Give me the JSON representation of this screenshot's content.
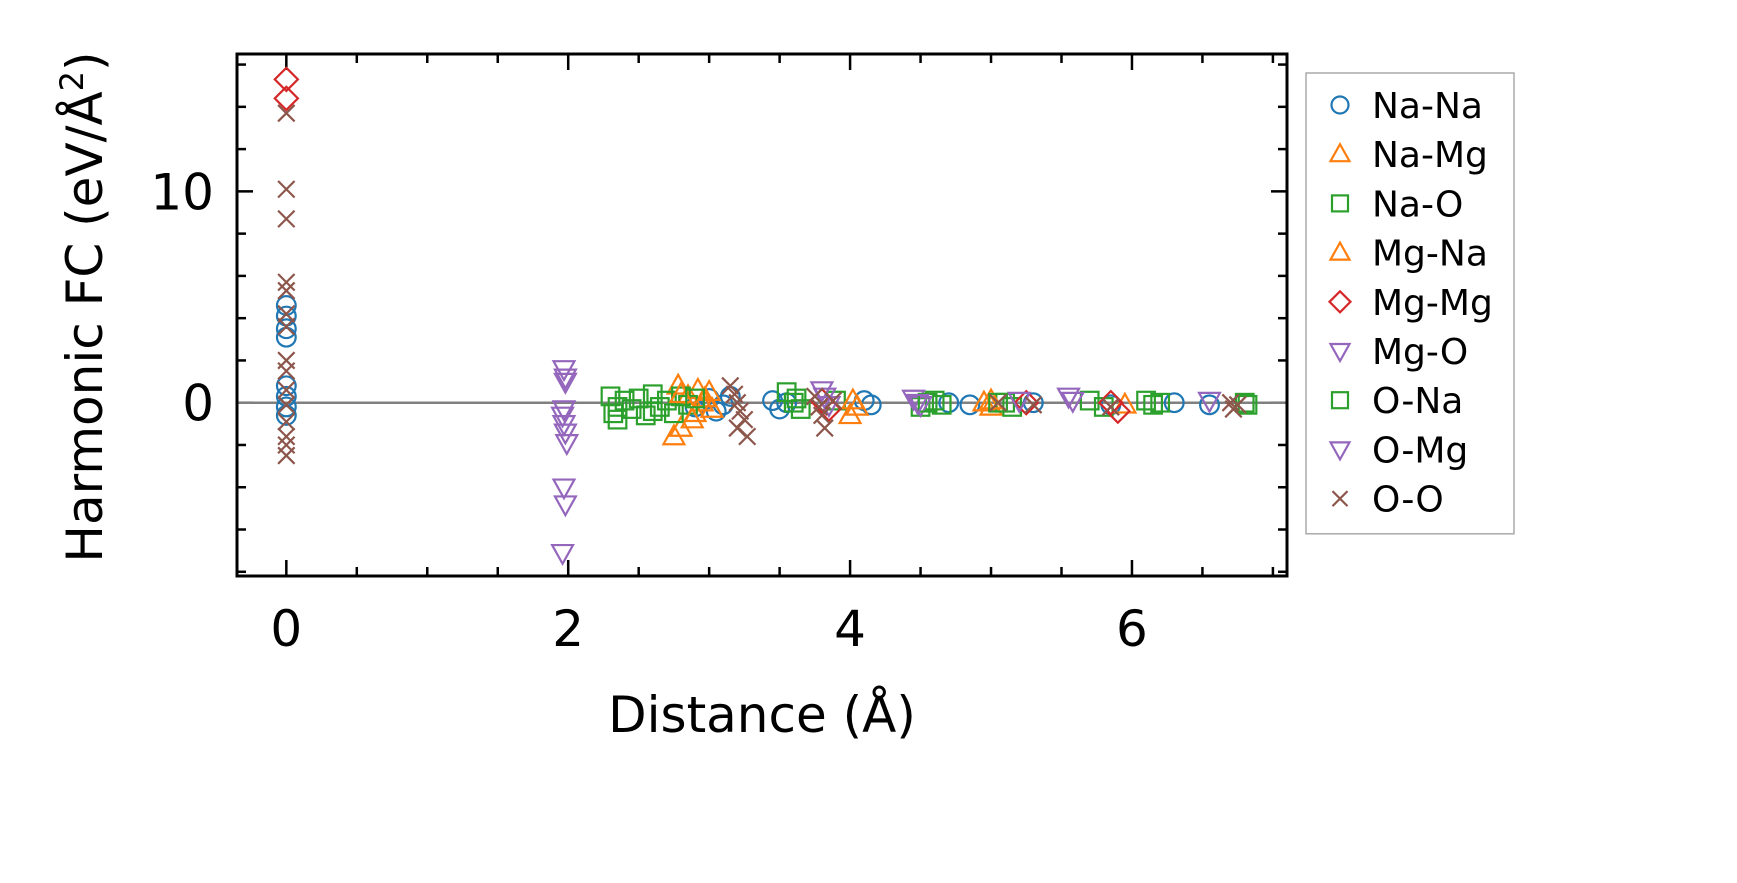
{
  "chart_data": {
    "type": "scatter",
    "xlabel": "Distance (Å)",
    "ylabel": "Harmonic FC (eV/Å",
    "ylabel_sup": "2",
    "ylabel_close": ")",
    "xlim": [
      -0.35,
      7.1
    ],
    "ylim": [
      -8.2,
      16.5
    ],
    "x_ticks": [
      0,
      2,
      4,
      6
    ],
    "x_minor_step": 0.5,
    "y_ticks": [
      0,
      10
    ],
    "y_minor_step": 2,
    "zero_line": true,
    "grid": false,
    "legend_position": "right, outside plot",
    "series": [
      {
        "name": "Na-Na",
        "marker": "circle",
        "color": "#1f77b4",
        "points": [
          [
            0,
            4.6
          ],
          [
            0,
            4.1
          ],
          [
            0,
            3.5
          ],
          [
            0,
            3.1
          ],
          [
            0,
            0.8
          ],
          [
            0,
            0.3
          ],
          [
            0,
            -0.2
          ],
          [
            0,
            -0.6
          ],
          [
            2.9,
            -0.2
          ],
          [
            3.0,
            0.2
          ],
          [
            3.05,
            -0.4
          ],
          [
            3.1,
            -0.1
          ],
          [
            3.15,
            0.3
          ],
          [
            3.45,
            0.1
          ],
          [
            3.5,
            -0.3
          ],
          [
            3.55,
            0.0
          ],
          [
            4.1,
            0.1
          ],
          [
            4.15,
            -0.1
          ],
          [
            4.7,
            0.0
          ],
          [
            4.85,
            -0.1
          ],
          [
            5.3,
            0.0
          ],
          [
            5.85,
            -0.1
          ],
          [
            6.3,
            0.0
          ],
          [
            6.55,
            -0.1
          ]
        ]
      },
      {
        "name": "Na-Mg",
        "marker": "triangle-up",
        "color": "#ff7f0e",
        "points": [
          [
            2.75,
            -1.6
          ],
          [
            2.78,
            0.8
          ],
          [
            2.8,
            -1.2
          ],
          [
            2.85,
            0.3
          ],
          [
            2.9,
            -0.5
          ],
          [
            2.92,
            0.6
          ],
          [
            2.95,
            0.0
          ],
          [
            3.0,
            0.5
          ],
          [
            3.02,
            -0.3
          ],
          [
            4.0,
            -0.6
          ],
          [
            4.05,
            -0.2
          ],
          [
            4.95,
            0.0
          ],
          [
            5.0,
            -0.2
          ],
          [
            5.95,
            -0.1
          ]
        ]
      },
      {
        "name": "Na-O",
        "marker": "square",
        "color": "#2ca02c",
        "points": [
          [
            2.3,
            0.3
          ],
          [
            2.32,
            -0.5
          ],
          [
            2.35,
            -0.8
          ],
          [
            2.4,
            0.1
          ],
          [
            2.45,
            -0.3
          ],
          [
            2.5,
            0.2
          ],
          [
            2.55,
            -0.6
          ],
          [
            2.6,
            0.4
          ],
          [
            2.65,
            -0.2
          ],
          [
            2.7,
            0.1
          ],
          [
            2.75,
            -0.5
          ],
          [
            2.8,
            0.3
          ],
          [
            2.85,
            -0.1
          ],
          [
            3.55,
            0.5
          ],
          [
            3.6,
            0.0
          ],
          [
            3.65,
            -0.3
          ],
          [
            3.9,
            0.1
          ],
          [
            4.5,
            -0.2
          ],
          [
            4.6,
            0.1
          ],
          [
            4.65,
            -0.1
          ],
          [
            5.1,
            0.0
          ],
          [
            5.15,
            -0.2
          ],
          [
            5.7,
            0.1
          ],
          [
            5.8,
            -0.2
          ],
          [
            6.1,
            0.1
          ],
          [
            6.15,
            -0.1
          ],
          [
            6.8,
            0.0
          ]
        ]
      },
      {
        "name": "Mg-Na",
        "marker": "triangle-up",
        "color": "#ff7f0e",
        "points": [
          [
            2.8,
            0.4
          ],
          [
            2.88,
            -0.8
          ],
          [
            2.97,
            0.2
          ],
          [
            4.02,
            0.1
          ],
          [
            5.0,
            0.1
          ]
        ]
      },
      {
        "name": "Mg-Mg",
        "marker": "diamond",
        "color": "#d62728",
        "points": [
          [
            0,
            15.3
          ],
          [
            0,
            14.4
          ],
          [
            3.8,
            0.1
          ],
          [
            3.85,
            -0.3
          ],
          [
            5.25,
            0.0
          ],
          [
            5.85,
            0.0
          ],
          [
            5.9,
            -0.4
          ]
        ]
      },
      {
        "name": "Mg-O",
        "marker": "triangle-down",
        "color": "#9467bd",
        "points": [
          [
            1.97,
            1.6
          ],
          [
            1.98,
            1.0
          ],
          [
            1.96,
            -0.6
          ],
          [
            1.97,
            -1.0
          ],
          [
            1.98,
            -1.4
          ],
          [
            1.99,
            -1.9
          ],
          [
            1.97,
            -4.0
          ],
          [
            1.98,
            -4.8
          ],
          [
            1.96,
            -7.1
          ],
          [
            3.8,
            0.6
          ],
          [
            3.85,
            -0.1
          ],
          [
            4.45,
            0.2
          ],
          [
            4.5,
            -0.1
          ],
          [
            5.2,
            0.1
          ],
          [
            5.55,
            0.3
          ],
          [
            6.55,
            0.1
          ]
        ]
      },
      {
        "name": "O-Na",
        "marker": "square",
        "color": "#2ca02c",
        "points": [
          [
            2.35,
            -0.2
          ],
          [
            2.6,
            -0.4
          ],
          [
            2.9,
            0.2
          ],
          [
            3.62,
            0.2
          ],
          [
            4.55,
            0.0
          ],
          [
            5.05,
            0.0
          ],
          [
            6.2,
            0.0
          ],
          [
            6.82,
            -0.1
          ]
        ]
      },
      {
        "name": "O-Mg",
        "marker": "triangle-down",
        "color": "#9467bd",
        "points": [
          [
            1.98,
            1.2
          ],
          [
            1.97,
            -0.3
          ],
          [
            3.82,
            0.3
          ],
          [
            4.48,
            0.0
          ],
          [
            5.58,
            0.1
          ]
        ]
      },
      {
        "name": "O-O",
        "marker": "x",
        "color": "#8c564b",
        "points": [
          [
            0,
            13.7
          ],
          [
            0,
            10.1
          ],
          [
            0,
            8.7
          ],
          [
            0,
            5.7
          ],
          [
            0,
            5.3
          ],
          [
            0,
            4.2
          ],
          [
            0,
            3.6
          ],
          [
            0,
            2.0
          ],
          [
            0,
            1.5
          ],
          [
            0,
            0.6
          ],
          [
            0,
            -0.1
          ],
          [
            0,
            -0.9
          ],
          [
            0,
            -1.6
          ],
          [
            0,
            -2.0
          ],
          [
            0,
            -2.5
          ],
          [
            3.15,
            0.8
          ],
          [
            3.18,
            0.4
          ],
          [
            3.2,
            0.0
          ],
          [
            3.22,
            -0.4
          ],
          [
            3.25,
            -0.8
          ],
          [
            3.27,
            -1.6
          ],
          [
            3.2,
            -1.2
          ],
          [
            3.75,
            0.3
          ],
          [
            3.78,
            -0.2
          ],
          [
            3.8,
            -0.6
          ],
          [
            3.82,
            -1.2
          ],
          [
            3.88,
            0.1
          ],
          [
            5.05,
            0.0
          ],
          [
            5.3,
            -0.1
          ],
          [
            5.85,
            -0.2
          ],
          [
            6.7,
            0.0
          ],
          [
            6.72,
            -0.3
          ],
          [
            6.75,
            -0.1
          ]
        ]
      }
    ]
  }
}
